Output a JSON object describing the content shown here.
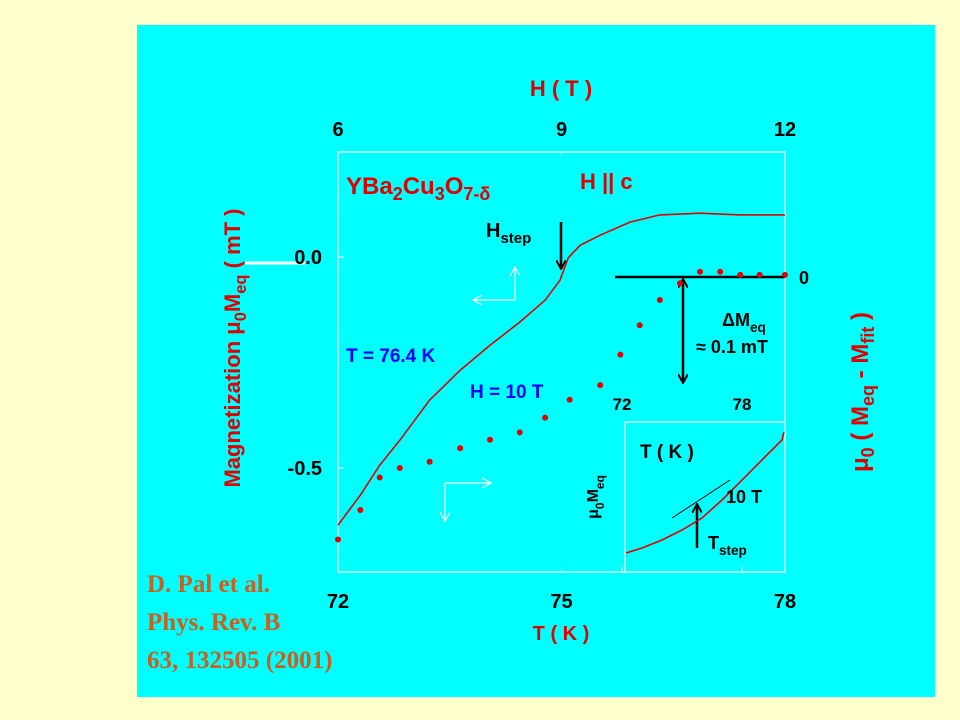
{
  "chart_data": [
    {
      "type": "line",
      "title": [
        {
          "text": "YBa"
        },
        {
          "text": "2",
          "sub": true
        },
        {
          "text": "Cu"
        },
        {
          "text": "3",
          "sub": true
        },
        {
          "text": "O"
        },
        {
          "text": "7-δ",
          "sub": true
        }
      ],
      "x_label": "T ( K )",
      "x2_label": "H ( T )",
      "y_label": [
        {
          "text": "Magnetization  μ"
        },
        {
          "text": "0",
          "sub": true
        },
        {
          "text": "M"
        },
        {
          "text": "eq",
          "sub": true
        },
        {
          "text": "  (  mT  )"
        }
      ],
      "y2_label": [
        {
          "text": "μ"
        },
        {
          "text": "0",
          "sub": true
        },
        {
          "text": " ( M"
        },
        {
          "text": "eq",
          "sub": true
        },
        {
          "text": " - M"
        },
        {
          "text": "fit",
          "sub": true
        },
        {
          "text": " )"
        }
      ],
      "xlim": [
        72,
        78
      ],
      "xticks": [
        72,
        75,
        78
      ],
      "x2lim": [
        6,
        12
      ],
      "x2ticks": [
        6,
        9,
        12
      ],
      "ylim": [
        -0.746,
        0.249
      ],
      "yticks": [
        {
          "value": 0,
          "label": "0.0"
        },
        -0.5
      ],
      "y2lim": [
        -0.281,
        0.119
      ],
      "y2ticks": [
        0
      ],
      "series": [
        {
          "name": "T = 76.4 K",
          "x_axis": "x2",
          "style": "line",
          "color": "#e00000",
          "x": [
            6,
            6.3,
            6.56,
            6.83,
            7.23,
            7.64,
            8.04,
            8.44,
            8.78,
            8.98,
            9.09,
            9.25,
            9.52,
            9.92,
            10.32,
            10.86,
            11.4,
            12
          ],
          "values": [
            -0.635,
            -0.564,
            -0.493,
            -0.434,
            -0.339,
            -0.268,
            -0.209,
            -0.154,
            -0.102,
            -0.055,
            -0.002,
            0.028,
            0.052,
            0.083,
            0.1,
            0.104,
            0.1,
            0.1
          ]
        },
        {
          "name": "H = 10 T",
          "axis": "y2",
          "style": "dots",
          "color": "#e00000",
          "x": [
            72,
            72.3,
            72.56,
            72.83,
            73.23,
            73.64,
            74.04,
            74.44,
            74.78,
            75.11,
            75.52,
            75.79,
            76.05,
            76.32,
            76.59,
            76.86,
            77.13,
            77.4,
            77.66,
            78
          ],
          "values": [
            -0.25,
            -0.222,
            -0.191,
            -0.182,
            -0.176,
            -0.163,
            -0.155,
            -0.148,
            -0.134,
            -0.117,
            -0.103,
            -0.074,
            -0.046,
            -0.022,
            -0.006,
            0.005,
            0.005,
            0.002,
            0.002,
            0.002
          ]
        }
      ],
      "annotations": [
        [
          {
            "text": "H || c"
          }
        ],
        [
          {
            "text": "H"
          },
          {
            "text": "step",
            "sub": true
          }
        ],
        [
          {
            "text": "ΔM"
          },
          {
            "text": "eq",
            "sub": true
          }
        ],
        [
          {
            "text": "≈ 0.1 mT"
          }
        ]
      ]
    },
    {
      "type": "line",
      "title": "T ( K )",
      "y_label": [
        {
          "text": "μ"
        },
        {
          "text": "0",
          "sub": true
        },
        {
          "text": "M"
        },
        {
          "text": "eq",
          "sub": true
        }
      ],
      "xlim": [
        72.15,
        80.15
      ],
      "xticks": [
        72,
        78
      ],
      "ylim": [
        0,
        1
      ],
      "series": [
        {
          "style": "line",
          "color": "#e00000",
          "x": [
            72.2,
            73,
            74,
            75,
            76,
            77,
            78,
            79,
            80,
            80.1
          ],
          "values": [
            0.127,
            0.16,
            0.213,
            0.28,
            0.36,
            0.48,
            0.613,
            0.747,
            0.88,
            0.933
          ]
        }
      ],
      "annotations": [
        [
          {
            "text": "10 T"
          }
        ],
        [
          {
            "text": "T"
          },
          {
            "text": "step",
            "sub": true
          }
        ]
      ]
    }
  ],
  "citation": [
    "D. Pal et al.",
    "Phys. Rev. B",
    "63, 132505 (2001)"
  ]
}
